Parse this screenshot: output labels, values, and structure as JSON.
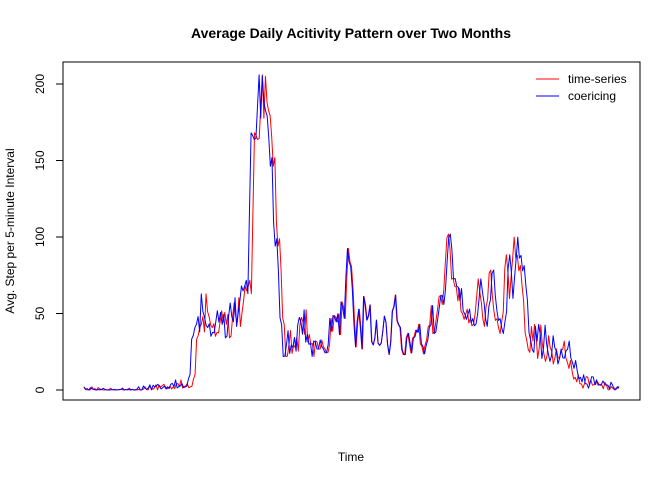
{
  "chart_data": {
    "type": "line",
    "title": "Average Daily Acitivity Pattern over Two Months",
    "xlabel": "Time",
    "ylabel": "Avg. Step per 5-minute Interval",
    "ylim": [
      0,
      206
    ],
    "yticks": [
      "0",
      "50",
      "100",
      "150",
      "200"
    ],
    "legend_position": "top-right",
    "grid": false,
    "series": [
      {
        "name": "time-series",
        "color": "#ff0000",
        "values": [
          1.7,
          0.3,
          0.1,
          0.2,
          0.1,
          2.1,
          0.5,
          0.9,
          0,
          1.5,
          0.8,
          0.4,
          0.1,
          0,
          0.3,
          0.1,
          0.3,
          1.1,
          0.4,
          0.1,
          0,
          0,
          0.2,
          0.2,
          0.4,
          0.1,
          0.2,
          0.3,
          0.5,
          1.2,
          0,
          0.3,
          0.1,
          0.3,
          0,
          0.4,
          0,
          0,
          0.6,
          2.1,
          0.2,
          0.1,
          2.6,
          1.2,
          0.4,
          1.3,
          3.4,
          0.1,
          3.1,
          2,
          2.8,
          3.7,
          2.2,
          0.7,
          1.5,
          2.5,
          0.7,
          2.1,
          0.9,
          3.8,
          4.3,
          2.2,
          6.6,
          1.3,
          2.3,
          2.7,
          4.2,
          1.5,
          2,
          2.5,
          7.2,
          10.1,
          33.2,
          35.7,
          40.7,
          43,
          48,
          38,
          62.8,
          51.3,
          47.7,
          42.3,
          40.8,
          43.3,
          35.1,
          37.6,
          37.4,
          44.4,
          51.8,
          44.3,
          50.7,
          42.9,
          49.4,
          34.1,
          35.3,
          48,
          56.9,
          47.9,
          44.6,
          60.3,
          41.5,
          50.4,
          58.1,
          68,
          64.8,
          67.8,
          71.7,
          63,
          117.2,
          168.1,
          166.3,
          163.7,
          164.5,
          185.5,
          206,
          177.6,
          205.1,
          188,
          182.5,
          179.2,
          165.2,
          146.2,
          151.9,
          109.5,
          94,
          98.9,
          77.8,
          47.2,
          42.7,
          21.9,
          22.1,
          29.5,
          38.8,
          23.9,
          29.3,
          27.8,
          34.4,
          25.4,
          42.3,
          47.5,
          44.5,
          36.5,
          52.4,
          31.3,
          36.3,
          29.9,
          30.4,
          21.9,
          32.1,
          31.2,
          26.8,
          26.8,
          32.7,
          28.4,
          26.9,
          24.3,
          24.6,
          29.8,
          46.7,
          38.4,
          48.7,
          47.5,
          44.5,
          49.8,
          36.2,
          57.6,
          53.9,
          46.8,
          73.6,
          92.5,
          83.9,
          80.7,
          66.1,
          43.6,
          28.2,
          44.7,
          52.8,
          40.9,
          26.9,
          61.1,
          55.4,
          45.7,
          48.5,
          55.6,
          31.6,
          29.5,
          33.9,
          45.7,
          30.6,
          29.2,
          30.6,
          38.5,
          48.3,
          44.2,
          29.8,
          23.2,
          31.6,
          51.5,
          54.5,
          62.1,
          45.4,
          42.6,
          40.8,
          26.8,
          23.3,
          23.1,
          34.3,
          37,
          30.4,
          24.2,
          33.8,
          34.8,
          39.1,
          37.8,
          43,
          30.2,
          28.5,
          23.6,
          29.3,
          32.7,
          41.2,
          42.6,
          55.2,
          36.9,
          37.9,
          45.3,
          52.8,
          61,
          61.9,
          55.9,
          65.6,
          83.6,
          99.5,
          101.9,
          91.6,
          72.5,
          72.9,
          67.8,
          67.1,
          58.3,
          66.3,
          51.5,
          49.8,
          46.2,
          49.5,
          52.9,
          43.8,
          46.7,
          42,
          43.1,
          49.6,
          60.9,
          72.6,
          64.3,
          57.1,
          46.3,
          41.6,
          54.6,
          59.1,
          76.3,
          78.4,
          61.8,
          51.9,
          45.5,
          46.6,
          40.7,
          36.9,
          44.5,
          51,
          79.6,
          88.4,
          77,
          59.8,
          73.7,
          86,
          99.9,
          86.2,
          88,
          77.9,
          81.3,
          68.5,
          58.5,
          37.3,
          32.6,
          26.4,
          24.6,
          41.5,
          32,
          42.9,
          36.1,
          20.6,
          27.5,
          42.4,
          29.6,
          23.7,
          18.7,
          22.5,
          35.5,
          27.8,
          25.5,
          17,
          20.8,
          26.8,
          21.1,
          20.8,
          25.6,
          26.7,
          32,
          21,
          18.2,
          14.1,
          19.3,
          12.5,
          7.2,
          8.3,
          5.3,
          10,
          4.1,
          4,
          1.2,
          4.5,
          8.7,
          8.5,
          3.5,
          6.6,
          3.2,
          3.4,
          3.6,
          5.9,
          3.9,
          3.1,
          3.3,
          0.9,
          5.1,
          3.2,
          0.2,
          0.2,
          2.2,
          1.1,
          1.4,
          0.7,
          1.1,
          2.3
        ]
      },
      {
        "name": "coericing",
        "color": "#0000ff",
        "values": [
          2.1,
          0.5,
          0.9,
          0,
          1.5,
          0.8,
          0.4,
          0.1,
          0,
          0.3,
          0.1,
          0.3,
          1.1,
          0.4,
          0.1,
          0,
          0,
          0.2,
          0.2,
          0.4,
          0.1,
          0.2,
          0.3,
          0.5,
          1.2,
          0,
          0.3,
          0.1,
          0.3,
          0,
          0.4,
          0,
          0,
          0.6,
          2.1,
          0.2,
          0.1,
          2.6,
          1.2,
          0.4,
          1.3,
          3.4,
          0.1,
          3.1,
          2,
          2.8,
          3.7,
          2.2,
          0.7,
          1.5,
          2.5,
          0.7,
          2.1,
          0.9,
          3.8,
          4.3,
          2.2,
          6.6,
          1.3,
          2.3,
          2.7,
          4.2,
          1.5,
          2,
          2.5,
          7.2,
          10.1,
          33.2,
          35.7,
          40.7,
          43,
          48,
          38,
          62.8,
          51.3,
          47.7,
          42.3,
          40.8,
          43.3,
          35.1,
          37.6,
          37.4,
          44.4,
          51.8,
          44.3,
          50.7,
          42.9,
          49.4,
          34.1,
          35.3,
          48,
          56.9,
          47.9,
          44.6,
          60.3,
          41.5,
          50.4,
          58.1,
          68,
          64.8,
          67.8,
          71.7,
          63,
          117.2,
          168.1,
          166.3,
          163.7,
          164.5,
          185.5,
          206,
          177.6,
          205.1,
          188,
          182.5,
          179.2,
          165.2,
          146.2,
          151.9,
          109.5,
          94,
          98.9,
          77.8,
          47.2,
          42.7,
          21.9,
          22.1,
          29.5,
          38.8,
          23.9,
          29.3,
          27.8,
          34.4,
          25.4,
          42.3,
          47.5,
          44.5,
          36.5,
          52.4,
          31.3,
          36.3,
          29.9,
          30.4,
          21.9,
          32.1,
          31.2,
          26.8,
          26.8,
          32.7,
          28.4,
          26.9,
          24.3,
          24.6,
          29.8,
          46.7,
          38.4,
          48.7,
          47.5,
          44.5,
          49.8,
          36.2,
          57.6,
          53.9,
          46.8,
          73.6,
          92.5,
          83.9,
          80.7,
          66.1,
          43.6,
          28.2,
          44.7,
          52.8,
          40.9,
          26.9,
          61.1,
          55.4,
          45.7,
          48.5,
          55.6,
          31.6,
          29.5,
          33.9,
          45.7,
          30.6,
          29.2,
          30.6,
          38.5,
          48.3,
          44.2,
          29.8,
          23.2,
          31.6,
          51.5,
          54.5,
          62.1,
          45.4,
          42.6,
          40.8,
          26.8,
          23.3,
          23.1,
          34.3,
          37,
          30.4,
          24.2,
          33.8,
          34.8,
          39.1,
          37.8,
          43,
          30.2,
          28.5,
          23.6,
          29.3,
          32.7,
          41.2,
          42.6,
          55.2,
          36.9,
          37.9,
          45.3,
          52.8,
          61,
          61.9,
          55.9,
          65.6,
          83.6,
          99.5,
          101.9,
          91.6,
          72.5,
          72.9,
          67.8,
          67.1,
          58.3,
          66.3,
          51.5,
          49.8,
          46.2,
          49.5,
          52.9,
          43.8,
          46.7,
          42,
          43.1,
          49.6,
          60.9,
          72.6,
          64.3,
          57.1,
          46.3,
          41.6,
          54.6,
          59.1,
          76.3,
          78.4,
          61.8,
          51.9,
          45.5,
          46.6,
          40.7,
          36.9,
          44.5,
          51,
          79.6,
          88.4,
          77,
          59.8,
          73.7,
          86,
          99.9,
          86.2,
          88,
          77.9,
          81.3,
          68.5,
          58.5,
          37.3,
          32.6,
          26.4,
          24.6,
          41.5,
          32,
          42.9,
          36.1,
          20.6,
          27.5,
          42.4,
          29.6,
          23.7,
          18.7,
          22.5,
          35.5,
          27.8,
          25.5,
          17,
          20.8,
          26.8,
          21.1,
          20.8,
          25.6,
          26.7,
          32,
          21,
          18.2,
          14.1,
          19.3,
          12.5,
          7.2,
          8.3,
          5.3,
          10,
          4.1,
          4,
          1.2,
          4.5,
          8.7,
          8.5,
          3.5,
          6.6,
          3.2,
          3.4,
          3.6,
          5.9,
          3.9,
          3.1,
          3.3,
          0.9,
          5.1,
          3.2,
          0.2,
          0.2,
          2.2,
          1.1
        ]
      }
    ]
  }
}
